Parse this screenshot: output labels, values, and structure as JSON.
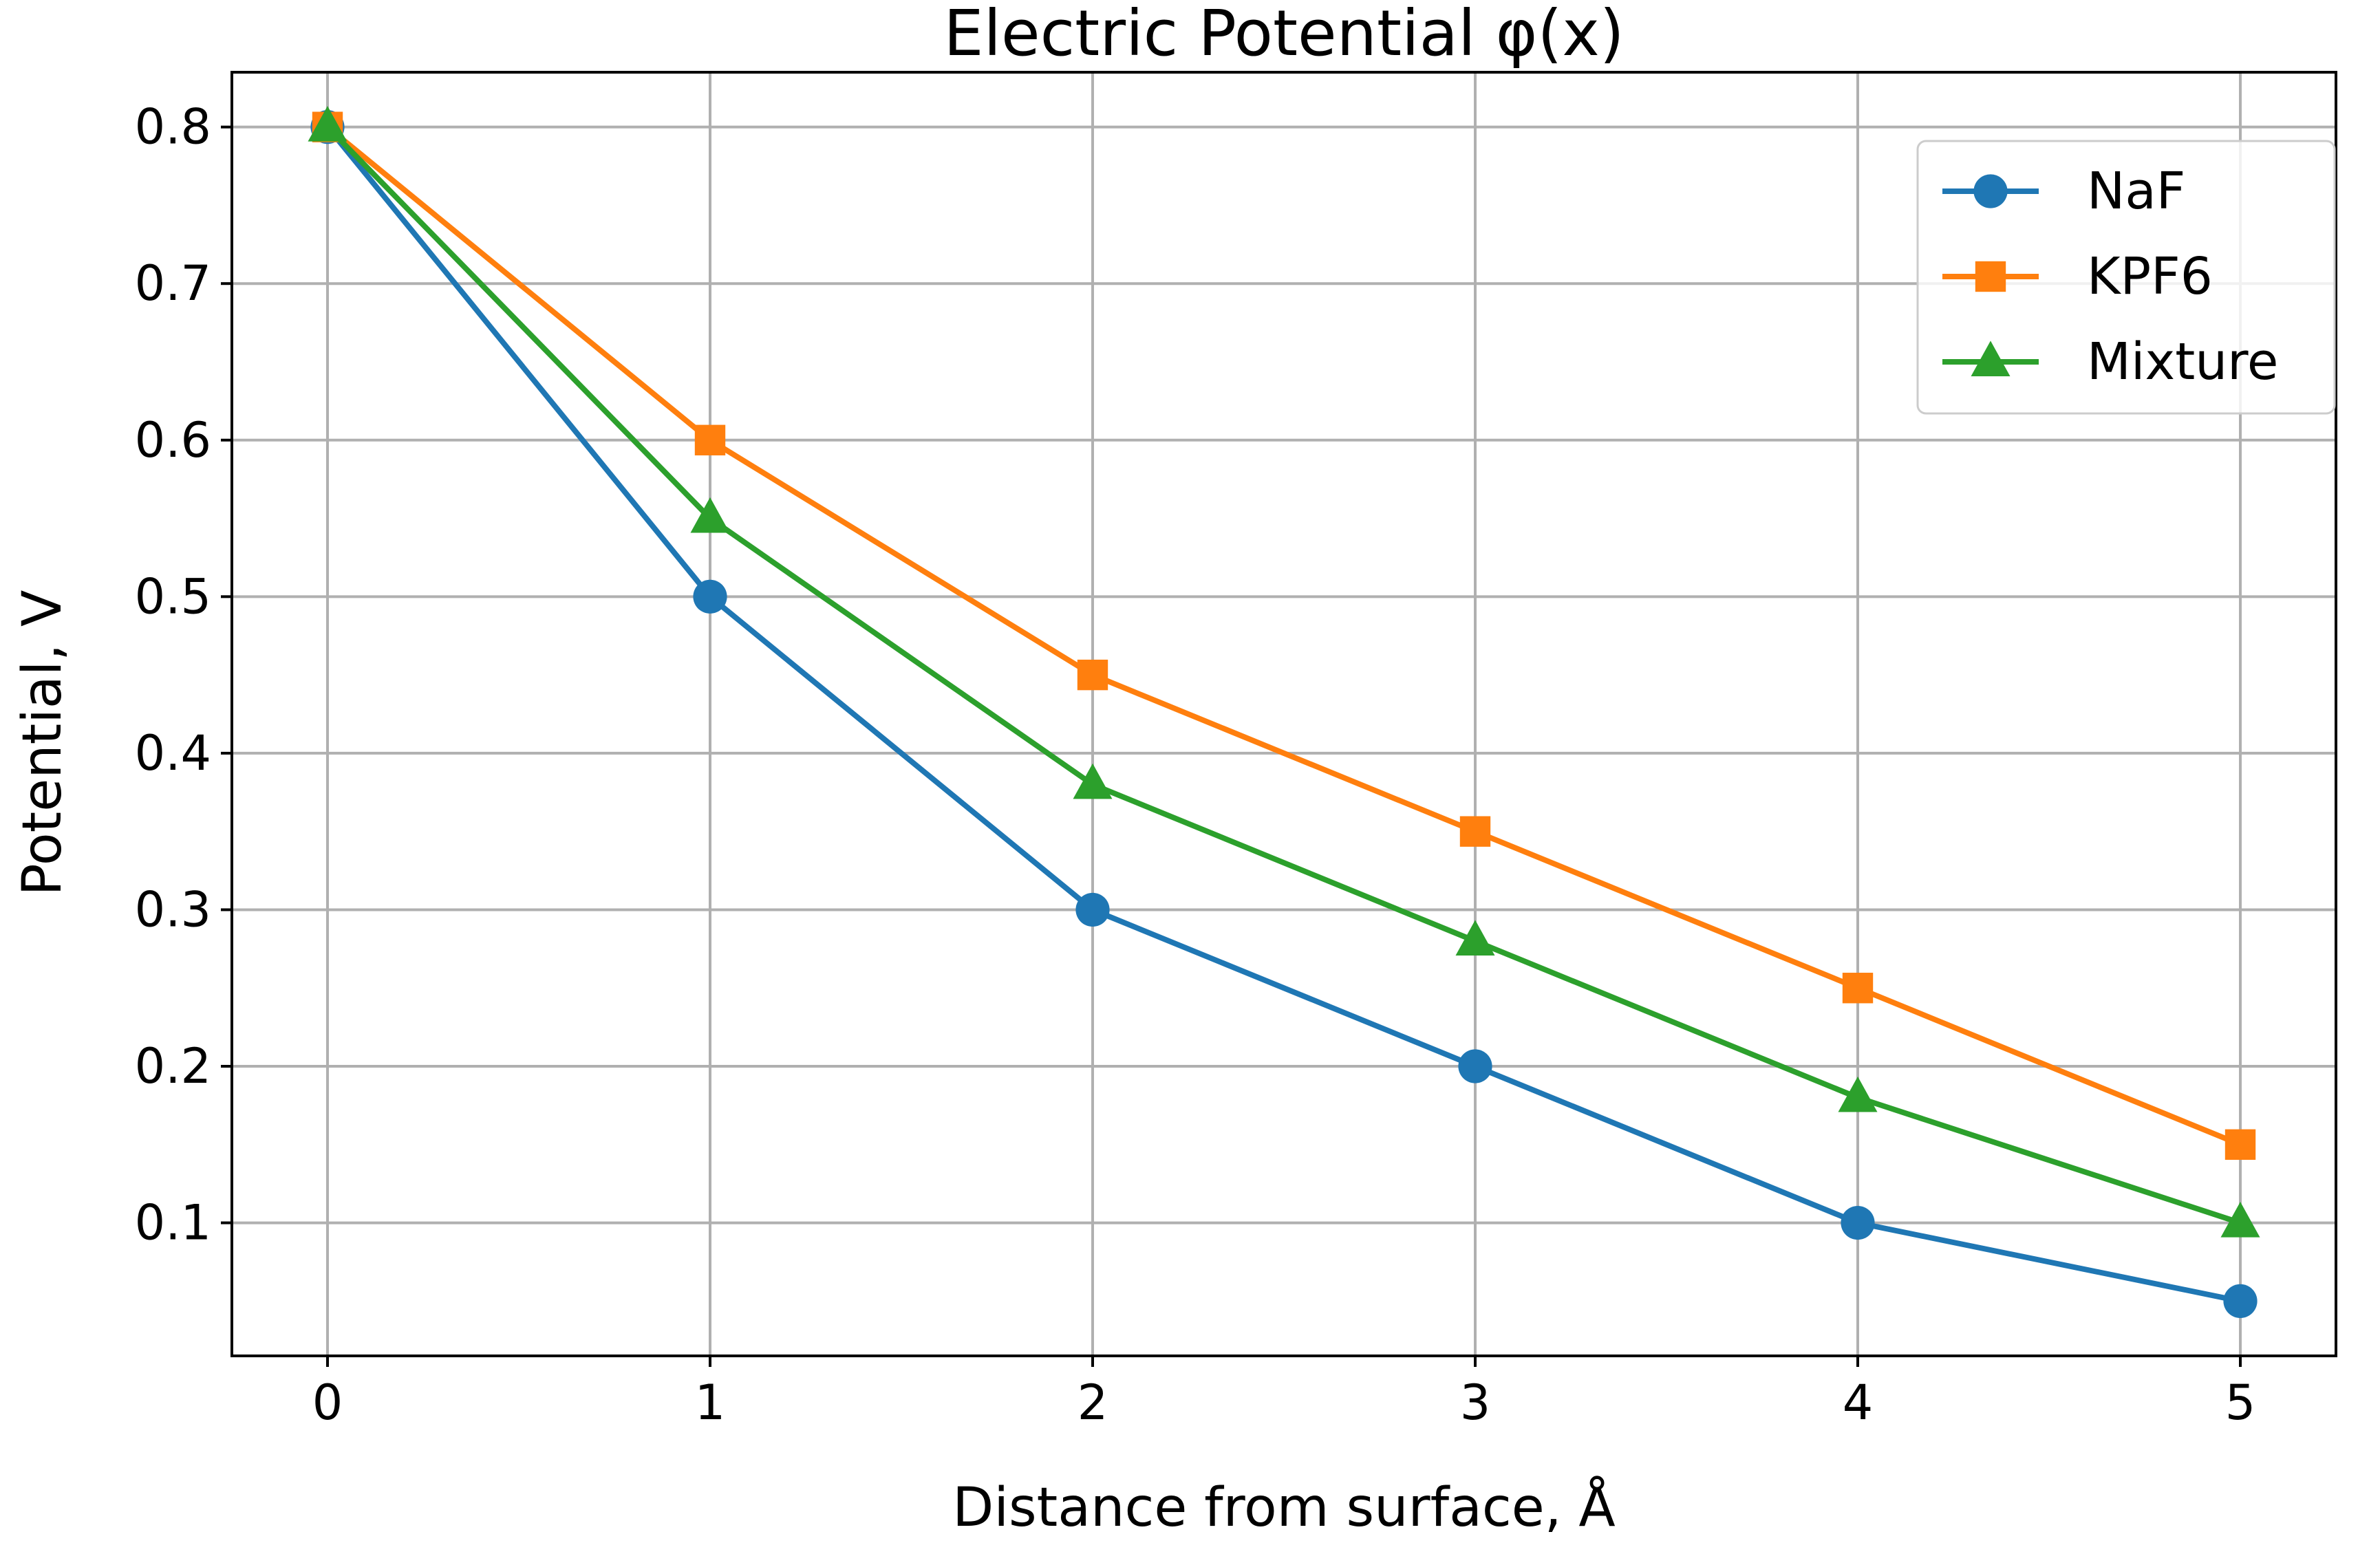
{
  "chart_data": {
    "type": "line",
    "title": "Electric Potential φ(x)",
    "xlabel": "Distance from surface, Å",
    "ylabel": "Potential, V",
    "x": [
      0,
      1,
      2,
      3,
      4,
      5
    ],
    "xlim": [
      -0.25,
      5.25
    ],
    "ylim": [
      0.015,
      0.835
    ],
    "xticks": [
      "0",
      "1",
      "2",
      "3",
      "4",
      "5"
    ],
    "yticks": [
      "0.1",
      "0.2",
      "0.3",
      "0.4",
      "0.5",
      "0.6",
      "0.7",
      "0.8"
    ],
    "ytick_values": [
      0.1,
      0.2,
      0.3,
      0.4,
      0.5,
      0.6,
      0.7,
      0.8
    ],
    "grid": true,
    "legend_position": "top-right",
    "series": [
      {
        "name": "NaF",
        "values": [
          0.8,
          0.5,
          0.3,
          0.2,
          0.1,
          0.05
        ],
        "color": "#1f77b4",
        "marker": "circle"
      },
      {
        "name": "KPF6",
        "values": [
          0.8,
          0.6,
          0.45,
          0.35,
          0.25,
          0.15
        ],
        "color": "#ff7f0e",
        "marker": "square"
      },
      {
        "name": "Mixture",
        "values": [
          0.8,
          0.55,
          0.38,
          0.28,
          0.18,
          0.1
        ],
        "color": "#2ca02c",
        "marker": "triangle"
      }
    ]
  }
}
